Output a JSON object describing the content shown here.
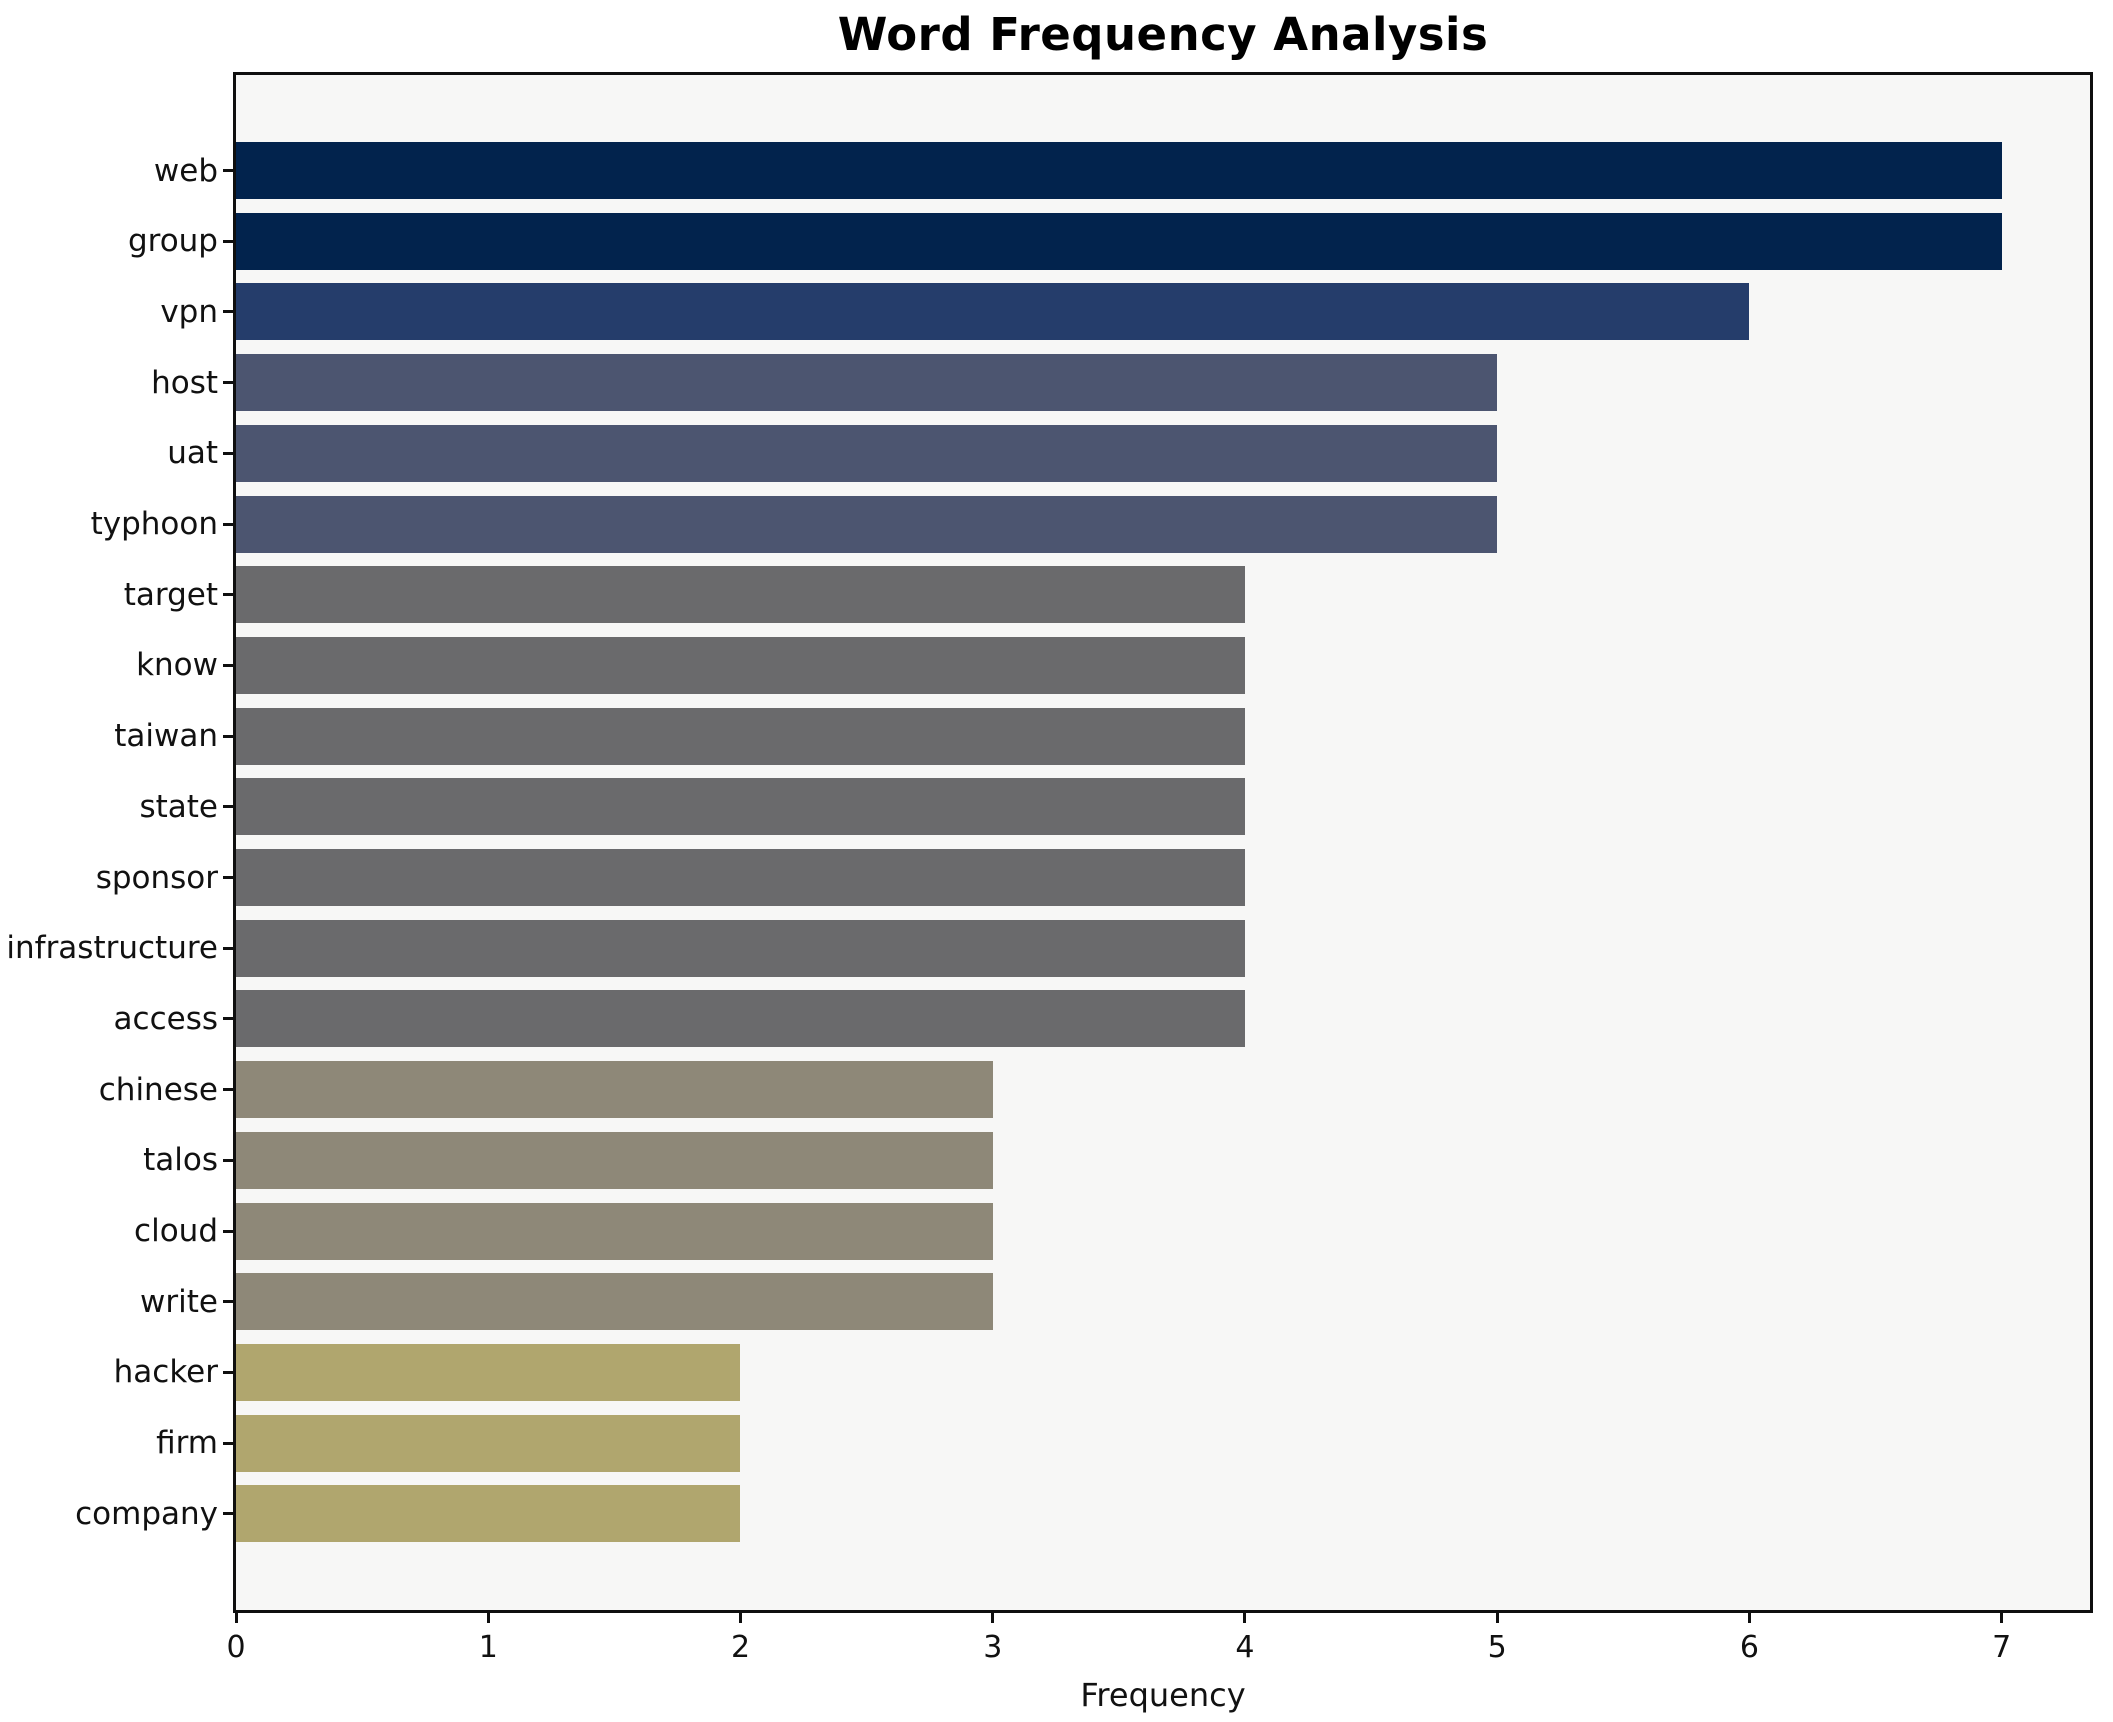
{
  "chart_data": {
    "type": "bar",
    "orientation": "horizontal",
    "title": "Word Frequency Analysis",
    "xlabel": "Frequency",
    "ylabel": "",
    "categories": [
      "web",
      "group",
      "vpn",
      "host",
      "uat",
      "typhoon",
      "target",
      "know",
      "taiwan",
      "state",
      "sponsor",
      "infrastructure",
      "access",
      "chinese",
      "talos",
      "cloud",
      "write",
      "hacker",
      "firm",
      "company"
    ],
    "values": [
      7,
      7,
      6,
      5,
      5,
      5,
      4,
      4,
      4,
      4,
      4,
      4,
      4,
      3,
      3,
      3,
      3,
      2,
      2,
      2
    ],
    "bar_colors": [
      "#02234d",
      "#02234d",
      "#253d6b",
      "#4c5570",
      "#4c5570",
      "#4c5570",
      "#6a6a6c",
      "#6a6a6c",
      "#6a6a6c",
      "#6a6a6c",
      "#6a6a6c",
      "#6a6a6c",
      "#6a6a6c",
      "#8e8878",
      "#8e8878",
      "#8e8878",
      "#8e8878",
      "#b0a66e",
      "#b0a66e",
      "#b0a66e"
    ],
    "xticks": [
      "0",
      "1",
      "2",
      "3",
      "4",
      "5",
      "6",
      "7"
    ],
    "xlim": [
      0,
      7.35
    ],
    "grid": false,
    "legend": null,
    "plot_background": "#f7f7f6",
    "figure_background": "#ffffff",
    "spine_color": "#0f0f0f"
  }
}
